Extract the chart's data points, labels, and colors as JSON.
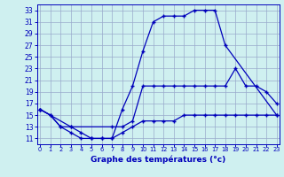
{
  "title": "Graphe des températures (°c)",
  "bg_color": "#cff0f0",
  "grid_color": "#99aacc",
  "line_color": "#0000bb",
  "ylim": [
    10.0,
    34.0
  ],
  "yticks": [
    11,
    13,
    15,
    17,
    19,
    21,
    23,
    25,
    27,
    29,
    31,
    33
  ],
  "xlim": [
    -0.3,
    23.3
  ],
  "xticks": [
    0,
    1,
    2,
    3,
    4,
    5,
    6,
    7,
    8,
    9,
    10,
    11,
    12,
    13,
    14,
    15,
    16,
    17,
    18,
    19,
    20,
    21,
    22,
    23
  ],
  "max_x": [
    0,
    1,
    2,
    3,
    4,
    5,
    6,
    7,
    8,
    9,
    10,
    11,
    12,
    13,
    14,
    15,
    16,
    17,
    18,
    23
  ],
  "max_y": [
    16,
    15,
    13,
    13,
    12,
    11,
    11,
    11,
    16,
    20,
    26,
    31,
    32,
    32,
    32,
    33,
    33,
    33,
    27,
    15
  ],
  "mid_x": [
    0,
    3,
    7,
    8,
    9,
    10,
    11,
    12,
    13,
    14,
    15,
    16,
    17,
    18,
    19,
    20,
    21,
    22,
    23
  ],
  "mid_y": [
    16,
    13,
    13,
    13,
    14,
    20,
    20,
    20,
    20,
    20,
    20,
    20,
    20,
    20,
    23,
    20,
    20,
    19,
    17
  ],
  "min_x": [
    0,
    1,
    2,
    3,
    4,
    5,
    6,
    7,
    8,
    9,
    10,
    11,
    12,
    13,
    14,
    15,
    16,
    17,
    18,
    19,
    20,
    21,
    22,
    23
  ],
  "min_y": [
    16,
    15,
    13,
    12,
    11,
    11,
    11,
    11,
    12,
    13,
    14,
    14,
    14,
    14,
    15,
    15,
    15,
    15,
    15,
    15,
    15,
    15,
    15,
    15
  ]
}
